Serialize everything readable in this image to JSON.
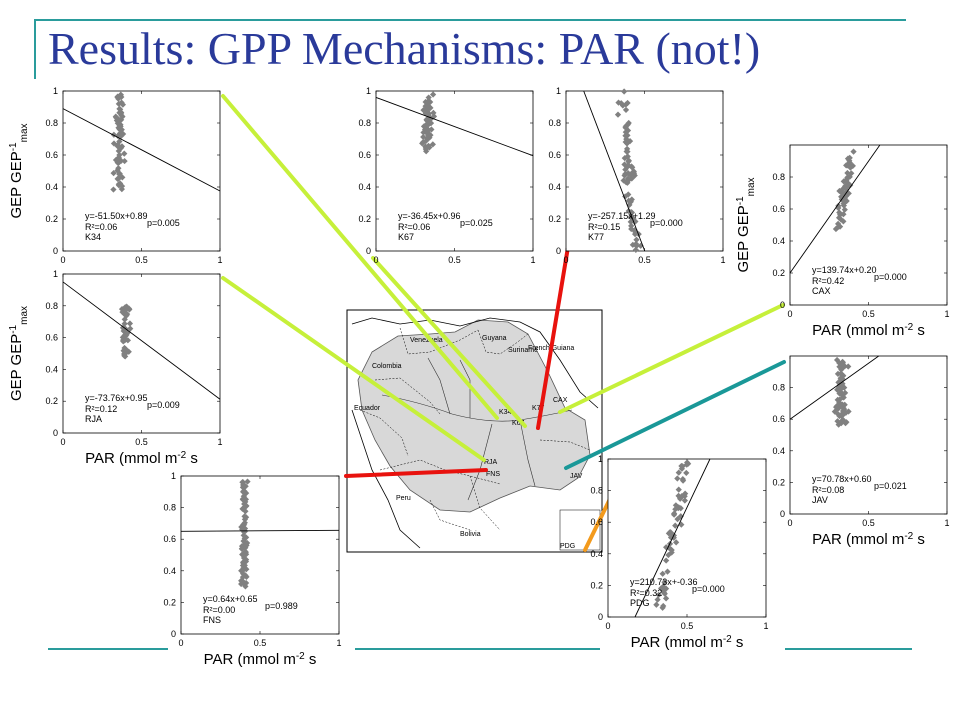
{
  "slide": {
    "title": "Results: GPP Mechanisms:  PAR (not!)",
    "colors": {
      "title": "#2a3a9a",
      "frame": "#2a9c9c",
      "points": "#808080",
      "lime": "#c6f03a",
      "red": "#e8120e",
      "teal": "#1a9898",
      "orange": "#f39a1c"
    }
  },
  "axis_labels": {
    "x": "PAR (mmol m^-2 s^-1)",
    "y": "GEP GEP^-1 max"
  },
  "map": {
    "countries": [
      "Venezuela",
      "Guyana",
      "Suriname",
      "French Guiana",
      "Colombia",
      "Ecuador",
      "Peru",
      "Bolivia"
    ],
    "sites": [
      "K34",
      "K67",
      "K77",
      "CAX",
      "RJA",
      "FNS",
      "JAV",
      "PDG"
    ]
  },
  "chart_data": [
    {
      "type": "scatter",
      "site": "K34",
      "equation": "y=-51.50x+0.89",
      "r2": "R²=0.06",
      "p": "p=0.005",
      "slope": -51.5,
      "intercept": 0.89,
      "xlim": [
        0,
        1
      ],
      "ylim": [
        0,
        1
      ],
      "xticks": [
        "0",
        "0.5",
        "1"
      ],
      "yticks": [
        "0",
        "0.2",
        "0.4",
        "0.6",
        "0.8",
        "1"
      ],
      "ylabel": "GEP GEP^-1 max",
      "xlabel": "",
      "connector": "lime"
    },
    {
      "type": "scatter",
      "site": "K67",
      "equation": "y=-36.45x+0.96",
      "r2": "R²=0.06",
      "p": "p=0.025",
      "slope": -36.45,
      "intercept": 0.96,
      "xlim": [
        0,
        1
      ],
      "ylim": [
        0,
        1
      ],
      "xticks": [
        "0",
        "0.5",
        "1"
      ],
      "yticks": [
        "0",
        "0.2",
        "0.4",
        "0.6",
        "0.8",
        "1"
      ],
      "ylabel": "",
      "xlabel": "",
      "connector": "lime"
    },
    {
      "type": "scatter",
      "site": "K77",
      "equation": "y=-257.15x+1.29",
      "r2": "R²=0.15",
      "p": "p=0.000",
      "slope": -257.15,
      "intercept": 1.29,
      "xlim": [
        0,
        1
      ],
      "ylim": [
        0,
        1
      ],
      "xticks": [
        "0",
        "0.5",
        "1"
      ],
      "yticks": [
        "0",
        "0.2",
        "0.4",
        "0.6",
        "0.8",
        "1"
      ],
      "ylabel": "",
      "xlabel": "",
      "connector": "red"
    },
    {
      "type": "scatter",
      "site": "CAX",
      "equation": "y=139.74x+0.20",
      "r2": "R²=0.42",
      "p": "p=0.000",
      "slope": 139.74,
      "intercept": 0.2,
      "xlim": [
        0,
        1
      ],
      "ylim": [
        0,
        1
      ],
      "xticks": [
        "0",
        "0.5",
        "1"
      ],
      "yticks": [
        "0",
        "0.2",
        "0.4",
        "0.6",
        "0.8"
      ],
      "ylabel": "GEP GEP^-1 max",
      "xlabel": "PAR (mmol m^-2 s^-1)",
      "connector": "lime"
    },
    {
      "type": "scatter",
      "site": "RJA",
      "equation": "y=-73.76x+0.95",
      "r2": "R²=0.12",
      "p": "p=0.009",
      "slope": -73.76,
      "intercept": 0.95,
      "xlim": [
        0,
        1
      ],
      "ylim": [
        0,
        1
      ],
      "xticks": [
        "0",
        "0.5",
        "1"
      ],
      "yticks": [
        "0",
        "0.2",
        "0.4",
        "0.6",
        "0.8",
        "1"
      ],
      "ylabel": "GEP GEP^-1 max",
      "xlabel": "PAR (mmol m^-2 s^-1)",
      "connector": "lime"
    },
    {
      "type": "scatter",
      "site": "JAV",
      "equation": "y=70.78x+0.60",
      "r2": "R²=0.08",
      "p": "p=0.021",
      "slope": 70.78,
      "intercept": 0.6,
      "xlim": [
        0,
        1
      ],
      "ylim": [
        0,
        1
      ],
      "xticks": [
        "0",
        "0.5",
        "1"
      ],
      "yticks": [
        "0",
        "0.2",
        "0.4",
        "0.6",
        "0.8"
      ],
      "ylabel": "",
      "xlabel": "PAR (mmol m^-2 s^-1)",
      "connector": "teal"
    },
    {
      "type": "scatter",
      "site": "FNS",
      "equation": "y=0.64x+0.65",
      "r2": "R²=0.00",
      "p": "p=0.989",
      "slope": 0.64,
      "intercept": 0.65,
      "xlim": [
        0,
        1
      ],
      "ylim": [
        0,
        1
      ],
      "xticks": [
        "0",
        "0.5",
        "1"
      ],
      "yticks": [
        "0",
        "0.2",
        "0.4",
        "0.6",
        "0.8",
        "1"
      ],
      "ylabel": "",
      "xlabel": "PAR (mmol m^-2 s^-1)",
      "connector": "red"
    },
    {
      "type": "scatter",
      "site": "PDG",
      "equation": "y=210.73x+-0.36",
      "r2": "R²=0.32",
      "p": "p=0.000",
      "slope": 210.73,
      "intercept": -0.36,
      "xlim": [
        0,
        1
      ],
      "ylim": [
        0,
        1
      ],
      "xticks": [
        "0",
        "0.5",
        "1"
      ],
      "yticks": [
        "0",
        "0.2",
        "0.4",
        "0.6",
        "0.8",
        "1"
      ],
      "ylabel": "",
      "xlabel": "PAR (mmol m^-2 s^-1)",
      "connector": "orange"
    }
  ]
}
